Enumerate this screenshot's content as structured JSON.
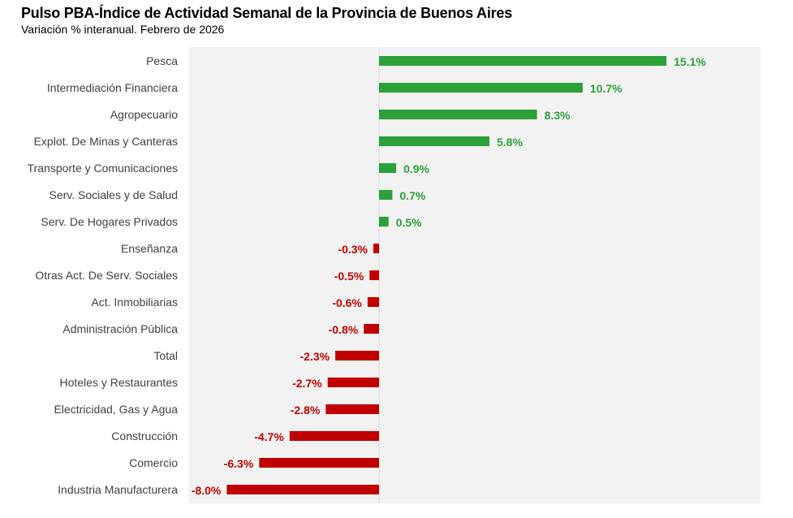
{
  "header": {
    "title": "Pulso PBA-Índice de Actividad Semanal de la Provincia de Buenos Aires",
    "subtitle": "Variación % interanual. Febrero de 2026"
  },
  "colors": {
    "positive": "#2ca039",
    "negative": "#c00000",
    "plot_bg": "#f2f2f2",
    "zero_line": "#d9d9d9"
  },
  "chart_data": {
    "type": "bar",
    "orientation": "horizontal",
    "title": "Pulso PBA-Índice de Actividad Semanal de la Provincia de Buenos Aires",
    "subtitle": "Variación % interanual. Febrero de 2026",
    "xlabel": "",
    "ylabel": "",
    "xlim": [
      -8.4,
      20.0
    ],
    "grid": false,
    "categories": [
      "Pesca",
      "Intermediación Financiera",
      "Agropecuario",
      "Explot. De Minas y Canteras",
      "Transporte y Comunicaciones",
      "Serv. Sociales y de Salud",
      "Serv. De Hogares Privados",
      "Enseñanza",
      "Otras Act. De Serv. Sociales",
      "Act. Inmobiliarias",
      "Administración Pública",
      "Total",
      "Hoteles y Restaurantes",
      "Electricidad, Gas y Agua",
      "Construcción",
      "Comercio",
      "Industria Manufacturera"
    ],
    "values": [
      15.1,
      10.7,
      8.3,
      5.8,
      0.9,
      0.7,
      0.5,
      -0.3,
      -0.5,
      -0.6,
      -0.8,
      -2.3,
      -2.7,
      -2.8,
      -4.7,
      -6.3,
      -8.0
    ],
    "value_labels": [
      "15.1%",
      "10.7%",
      "8.3%",
      "5.8%",
      "0.9%",
      "0.7%",
      "0.5%",
      "-0.3%",
      "-0.5%",
      "-0.6%",
      "-0.8%",
      "-2.3%",
      "-2.7%",
      "-2.8%",
      "-4.7%",
      "-6.3%",
      "-8.0%"
    ]
  }
}
